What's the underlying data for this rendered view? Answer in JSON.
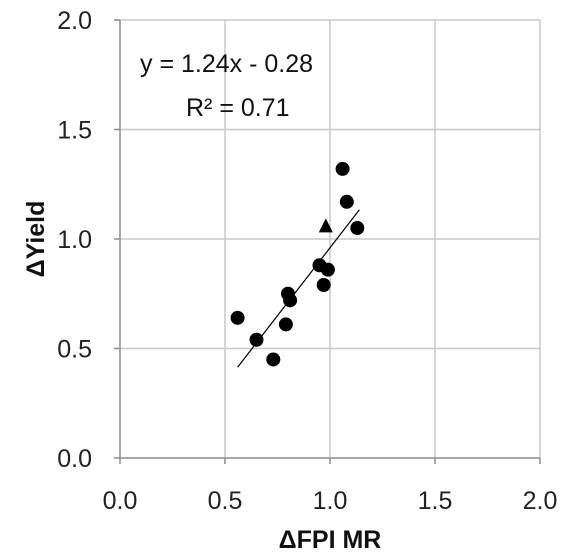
{
  "chart_data": {
    "type": "scatter",
    "xlabel": "ΔFPI MR",
    "ylabel": "ΔYield",
    "xlim": [
      0.0,
      2.0
    ],
    "ylim": [
      0.0,
      2.0
    ],
    "x_ticks": [
      "0.0",
      "0.5",
      "1.0",
      "1.5",
      "2.0"
    ],
    "y_ticks": [
      "0.0",
      "0.5",
      "1.0",
      "1.5",
      "2.0"
    ],
    "grid": true,
    "series": [
      {
        "marker": "circle",
        "color": "#000000",
        "points": [
          {
            "x": 0.56,
            "y": 0.64
          },
          {
            "x": 0.65,
            "y": 0.54
          },
          {
            "x": 0.73,
            "y": 0.45
          },
          {
            "x": 0.79,
            "y": 0.61
          },
          {
            "x": 0.8,
            "y": 0.75
          },
          {
            "x": 0.81,
            "y": 0.72
          },
          {
            "x": 0.95,
            "y": 0.88
          },
          {
            "x": 0.97,
            "y": 0.79
          },
          {
            "x": 0.99,
            "y": 0.86
          },
          {
            "x": 1.06,
            "y": 1.32
          },
          {
            "x": 1.08,
            "y": 1.17
          },
          {
            "x": 1.13,
            "y": 1.05
          }
        ]
      },
      {
        "marker": "triangle",
        "color": "#000000",
        "points": [
          {
            "x": 0.98,
            "y": 1.06
          }
        ]
      }
    ],
    "trendline": {
      "slope": 1.24,
      "intercept": -0.28,
      "x_range": [
        0.56,
        1.14
      ],
      "color": "#000000"
    },
    "annotations": {
      "equation": "y = 1.24x - 0.28",
      "r_squared": "R² = 0.71"
    }
  }
}
